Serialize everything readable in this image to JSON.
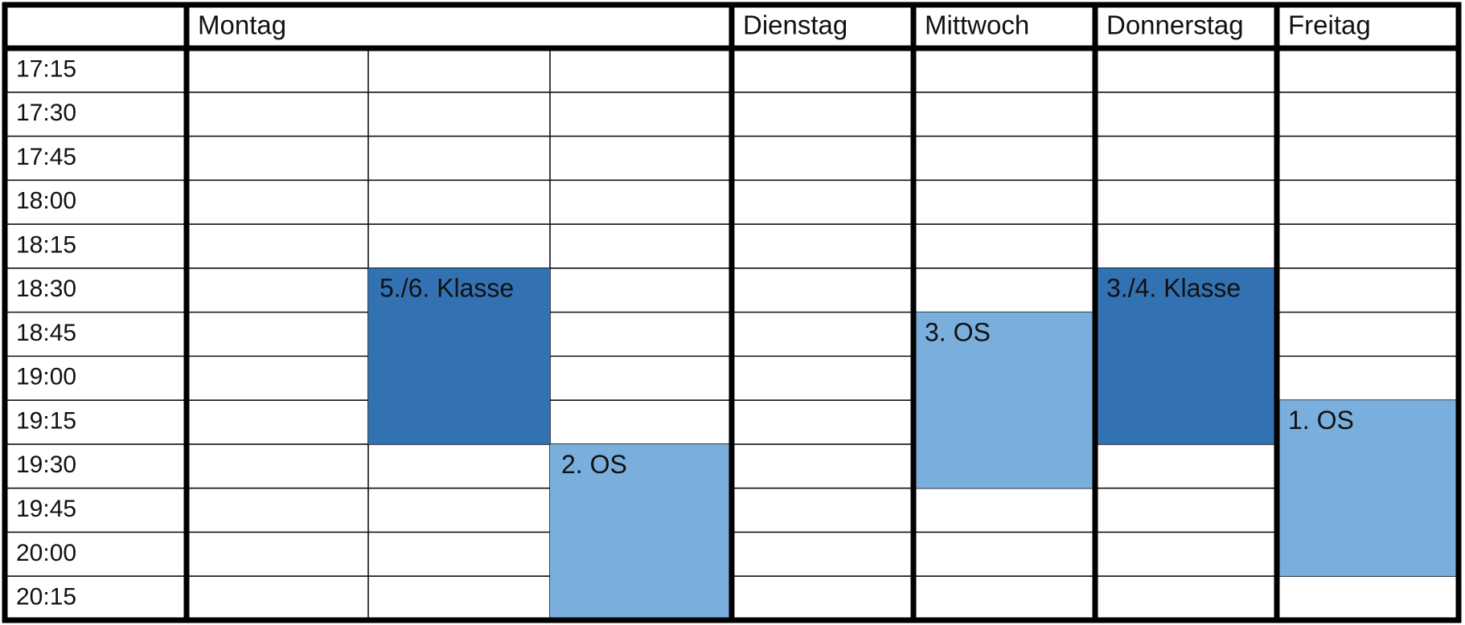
{
  "header": {
    "days": [
      "Montag",
      "Dienstag",
      "Mittwoch",
      "Donnerstag",
      "Freitag"
    ]
  },
  "times": [
    "17:15",
    "17:30",
    "17:45",
    "18:00",
    "18:15",
    "18:30",
    "18:45",
    "19:00",
    "19:15",
    "19:30",
    "19:45",
    "20:00",
    "20:15"
  ],
  "events": [
    {
      "label": "5./6. Klasse"
    },
    {
      "label": "2. OS"
    },
    {
      "label": "3. OS"
    },
    {
      "label": "3./4. Klasse"
    },
    {
      "label": "1. OS"
    }
  ]
}
